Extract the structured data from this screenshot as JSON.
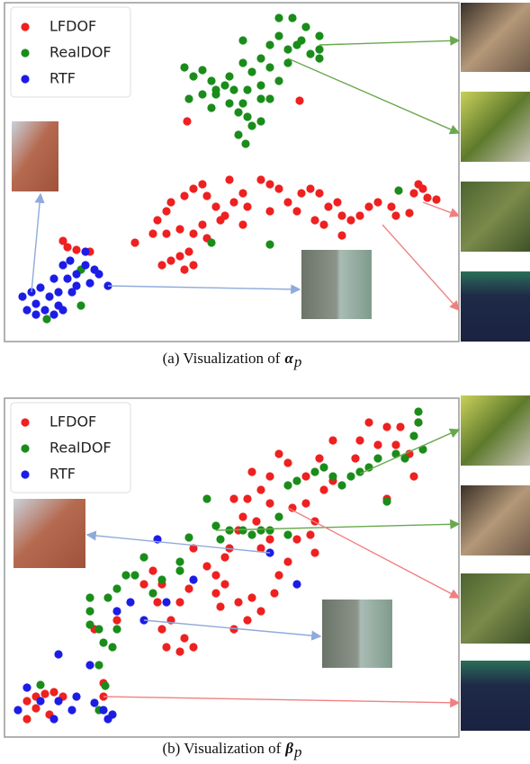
{
  "chart_data": [
    {
      "type": "scatter",
      "caption": "(a) Visualization of",
      "caption_symbol": "α",
      "caption_subscript": "p",
      "xlim": [
        5,
        510
      ],
      "ylim": [
        380,
        3
      ],
      "legend": "upper left",
      "series": [
        {
          "name": "LFDOF",
          "color": "#ee2020",
          "x": [
            150,
            170,
            175,
            185,
            190,
            205,
            215,
            225,
            230,
            240,
            250,
            255,
            270,
            275,
            290,
            300,
            310,
            300,
            330,
            335,
            345,
            355,
            365,
            375,
            380,
            390,
            400,
            410,
            420,
            435,
            440,
            460,
            465,
            475,
            485,
            180,
            190,
            200,
            210,
            215,
            205,
            185,
            200,
            215,
            225,
            230,
            245,
            260,
            270,
            380,
            350,
            320,
            360,
            455,
            470,
            208,
            333,
            70,
            75,
            85,
            100
          ],
          "values": [
            270,
            260,
            245,
            235,
            225,
            218,
            210,
            205,
            218,
            230,
            240,
            200,
            215,
            230,
            200,
            205,
            210,
            235,
            235,
            215,
            210,
            215,
            230,
            225,
            240,
            245,
            240,
            230,
            225,
            230,
            240,
            215,
            205,
            220,
            222,
            295,
            290,
            285,
            280,
            295,
            300,
            260,
            255,
            260,
            250,
            265,
            245,
            225,
            250,
            262,
            245,
            225,
            250,
            237,
            210,
            135,
            112,
            268,
            275,
            278,
            280
          ]
        },
        {
          "name": "RealDOF",
          "color": "#1a8c1a",
          "x": [
            205,
            215,
            225,
            235,
            240,
            255,
            270,
            280,
            290,
            300,
            310,
            325,
            340,
            355,
            355,
            355,
            345,
            330,
            320,
            300,
            310,
            290,
            275,
            270,
            275,
            265,
            280,
            290,
            300,
            260,
            250,
            235,
            225,
            210,
            270,
            310,
            335,
            320,
            273,
            265,
            290,
            240,
            255,
            443,
            235,
            300,
            90,
            90,
            52
          ],
          "values": [
            75,
            85,
            78,
            90,
            105,
            85,
            70,
            80,
            65,
            50,
            40,
            20,
            30,
            40,
            55,
            65,
            60,
            50,
            70,
            75,
            90,
            95,
            100,
            115,
            130,
            125,
            140,
            110,
            110,
            100,
            95,
            120,
            105,
            110,
            45,
            20,
            45,
            55,
            160,
            150,
            135,
            100,
            115,
            212,
            270,
            272,
            300,
            340,
            355
          ]
        },
        {
          "name": "RTF",
          "color": "#1c1ce6",
          "x": [
            25,
            30,
            35,
            40,
            45,
            50,
            55,
            60,
            65,
            65,
            70,
            75,
            78,
            80,
            85,
            95,
            100,
            105,
            110,
            120,
            40,
            60,
            70,
            95,
            85
          ],
          "values": [
            330,
            345,
            325,
            338,
            320,
            345,
            330,
            310,
            325,
            340,
            295,
            310,
            290,
            325,
            305,
            295,
            315,
            300,
            305,
            318,
            350,
            350,
            345,
            280,
            318
          ]
        }
      ]
    },
    {
      "type": "scatter",
      "caption": "(b) Visualization of",
      "caption_symbol": "β",
      "caption_subscript": "p",
      "xlim": [
        5,
        510
      ],
      "ylim": [
        820,
        443
      ],
      "legend": "upper left",
      "series": [
        {
          "name": "LFDOF",
          "color": "#ee2020",
          "x": [
            410,
            430,
            440,
            445,
            420,
            400,
            395,
            370,
            355,
            340,
            320,
            310,
            300,
            290,
            280,
            275,
            270,
            300,
            325,
            340,
            350,
            345,
            330,
            350,
            320,
            310,
            300,
            290,
            285,
            265,
            255,
            260,
            250,
            240,
            230,
            250,
            265,
            280,
            290,
            275,
            260,
            240,
            210,
            200,
            190,
            205,
            215,
            200,
            185,
            180,
            175,
            160,
            130,
            105,
            430,
            460,
            455,
            465,
            115,
            30,
            40,
            50,
            60,
            70,
            40,
            55,
            30,
            115,
            370,
            360,
            215,
            170,
            180,
            245,
            305
          ],
          "values": [
            470,
            475,
            495,
            475,
            495,
            490,
            510,
            490,
            510,
            530,
            515,
            505,
            530,
            545,
            525,
            555,
            575,
            560,
            565,
            560,
            580,
            595,
            600,
            615,
            625,
            640,
            600,
            610,
            580,
            590,
            610,
            555,
            620,
            640,
            630,
            650,
            670,
            665,
            680,
            690,
            700,
            660,
            655,
            670,
            690,
            710,
            720,
            725,
            720,
            700,
            670,
            650,
            690,
            700,
            555,
            530,
            505,
            470,
            775,
            780,
            775,
            772,
            770,
            775,
            788,
            795,
            800,
            760,
            535,
            545,
            610,
            635,
            650,
            675,
            660
          ]
        },
        {
          "name": "RealDOF",
          "color": "#1a8c1a",
          "x": [
            465,
            465,
            460,
            450,
            440,
            420,
            410,
            400,
            390,
            380,
            370,
            360,
            350,
            330,
            320,
            310,
            300,
            320,
            290,
            280,
            270,
            255,
            245,
            240,
            230,
            210,
            200,
            200,
            180,
            170,
            160,
            150,
            140,
            130,
            120,
            100,
            100,
            100,
            110,
            130,
            115,
            125,
            110,
            430,
            470,
            117,
            45,
            110
          ],
          "values": [
            458,
            470,
            485,
            510,
            505,
            510,
            520,
            525,
            530,
            540,
            530,
            520,
            525,
            535,
            540,
            575,
            590,
            595,
            590,
            595,
            590,
            590,
            600,
            585,
            555,
            598,
            625,
            635,
            645,
            660,
            620,
            640,
            640,
            655,
            665,
            665,
            680,
            695,
            700,
            700,
            715,
            720,
            740,
            558,
            500,
            763,
            762,
            790
          ]
        },
        {
          "name": "RTF",
          "color": "#1c1ce6",
          "x": [
            175,
            300,
            330,
            215,
            145,
            185,
            160,
            130,
            100,
            65,
            30,
            45,
            65,
            80,
            20,
            105,
            115,
            120,
            125,
            60,
            85
          ],
          "values": [
            600,
            615,
            650,
            645,
            670,
            670,
            690,
            680,
            740,
            728,
            765,
            780,
            780,
            790,
            790,
            782,
            790,
            800,
            795,
            800,
            775
          ]
        }
      ]
    }
  ]
}
